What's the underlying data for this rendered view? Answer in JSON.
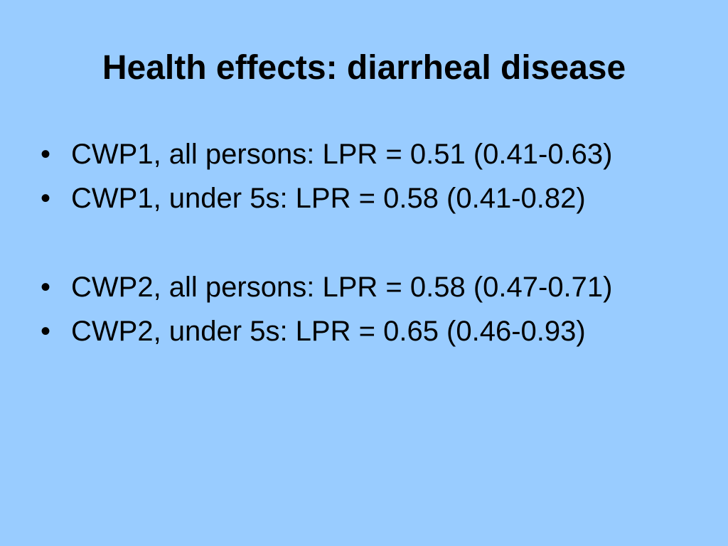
{
  "slide": {
    "background_color": "#99ccff",
    "title": "Health effects: diarrheal disease",
    "bullet_marker": "•",
    "bullets": [
      "CWP1, all persons: LPR = 0.51 (0.41-0.63)",
      "CWP1, under 5s: LPR = 0.58 (0.41-0.82)",
      "CWP2, all persons: LPR = 0.58 (0.47-0.71)",
      "CWP2, under 5s: LPR = 0.65 (0.46-0.93)"
    ]
  }
}
